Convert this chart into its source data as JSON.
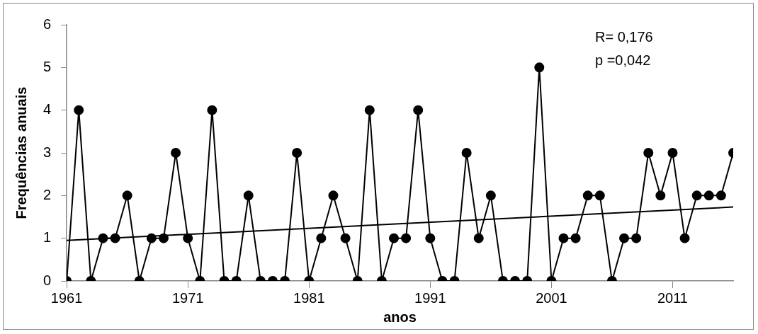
{
  "chart_data": {
    "type": "line",
    "xlabel": "anos",
    "ylabel": "Frequências anuais",
    "x": [
      1961,
      1962,
      1963,
      1964,
      1965,
      1966,
      1967,
      1968,
      1969,
      1970,
      1971,
      1972,
      1973,
      1974,
      1975,
      1976,
      1977,
      1978,
      1979,
      1980,
      1981,
      1982,
      1983,
      1984,
      1985,
      1986,
      1987,
      1988,
      1989,
      1990,
      1991,
      1992,
      1993,
      1994,
      1995,
      1996,
      1997,
      1998,
      1999,
      2000,
      2001,
      2002,
      2003,
      2004,
      2005,
      2006,
      2007,
      2008,
      2009,
      2010,
      2011,
      2012,
      2013,
      2014,
      2015,
      2016
    ],
    "series": [
      {
        "color": "#000000",
        "marker": "circle",
        "values": [
          0,
          4,
          0,
          1,
          1,
          2,
          0,
          1,
          1,
          3,
          1,
          0,
          4,
          0,
          0,
          2,
          0,
          0,
          0,
          3,
          0,
          1,
          2,
          1,
          0,
          4,
          0,
          1,
          1,
          4,
          1,
          0,
          0,
          3,
          1,
          2,
          0,
          0,
          0,
          5,
          0,
          1,
          1,
          2,
          2,
          0,
          1,
          1,
          3,
          2,
          3,
          1,
          2,
          2,
          2,
          3
        ]
      },
      {
        "type": "line",
        "color": "#000000",
        "marker": "none",
        "x": [
          1961,
          2016
        ],
        "values": [
          0.95,
          1.73
        ]
      }
    ],
    "xlim": [
      1961,
      2016
    ],
    "xticks": [
      1961,
      1971,
      1981,
      1991,
      2001,
      2011
    ],
    "ylim": [
      0,
      6
    ],
    "yticks": [
      0,
      1,
      2,
      3,
      4,
      5,
      6
    ],
    "grid": false,
    "legend": false,
    "line_style": "solid",
    "annotations": [
      "R= 0,176",
      "p =0,042"
    ]
  }
}
